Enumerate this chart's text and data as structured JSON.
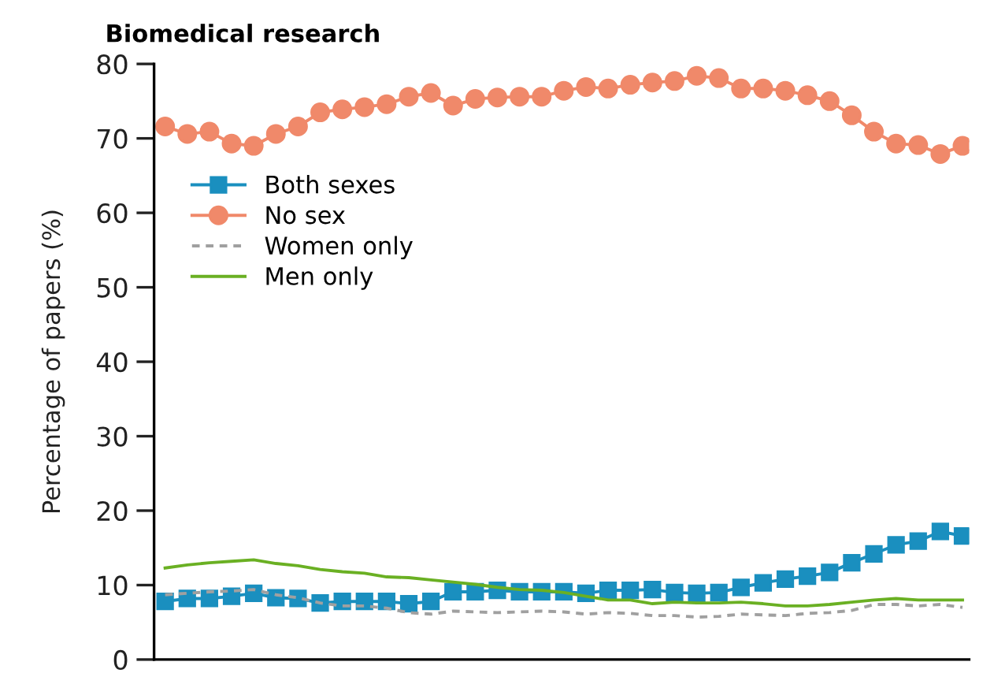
{
  "chart_data": {
    "type": "line",
    "title": "Biomedical research",
    "ylabel": "Percentage of papers (%)",
    "categories": [
      null,
      null,
      null,
      null,
      null,
      null,
      null,
      null,
      null,
      null,
      null,
      null,
      null,
      null,
      null,
      null,
      null,
      null,
      null,
      null,
      null,
      null,
      null,
      null,
      null,
      null,
      null,
      null,
      null,
      null,
      null,
      null,
      null,
      null,
      null,
      null,
      null
    ],
    "ylim": [
      0,
      80
    ],
    "yticks": [
      0,
      10,
      20,
      30,
      40,
      50,
      60,
      70,
      80
    ],
    "grid": false,
    "legend": "top left",
    "series": [
      {
        "name": "Both sexes",
        "color": "#1a8fbf",
        "marker": "square",
        "line_style": "solid",
        "values": [
          7.8,
          8.2,
          8.2,
          8.5,
          8.9,
          8.3,
          8.2,
          7.6,
          7.8,
          7.8,
          7.8,
          7.5,
          7.8,
          9.1,
          9.1,
          9.3,
          9.1,
          9.1,
          9.1,
          8.9,
          9.3,
          9.3,
          9.4,
          9.0,
          8.9,
          9.0,
          9.7,
          10.3,
          10.8,
          11.2,
          11.7,
          13.0,
          14.2,
          15.4,
          15.9,
          17.2,
          16.6
        ]
      },
      {
        "name": "No sex",
        "color": "#f0896a",
        "marker": "circle",
        "line_style": "solid",
        "values": [
          71.6,
          70.6,
          70.9,
          69.3,
          69.0,
          70.6,
          71.6,
          73.5,
          73.9,
          74.2,
          74.6,
          75.6,
          76.1,
          74.4,
          75.3,
          75.5,
          75.6,
          75.6,
          76.4,
          76.9,
          76.7,
          77.2,
          77.5,
          77.7,
          78.4,
          78.1,
          76.7,
          76.7,
          76.4,
          75.8,
          75.0,
          73.1,
          70.9,
          69.3,
          69.1,
          67.9,
          69.0
        ]
      },
      {
        "name": "Women only",
        "color": "#a0a0a0",
        "marker": "none",
        "line_style": "dashed",
        "values": [
          8.7,
          8.9,
          9.1,
          9.2,
          9.4,
          8.7,
          8.3,
          7.6,
          7.2,
          7.2,
          6.9,
          6.3,
          6.1,
          6.5,
          6.4,
          6.3,
          6.4,
          6.5,
          6.4,
          6.1,
          6.3,
          6.2,
          5.9,
          5.9,
          5.7,
          5.8,
          6.1,
          6.0,
          5.9,
          6.2,
          6.3,
          6.6,
          7.4,
          7.4,
          7.2,
          7.4,
          7.0
        ]
      },
      {
        "name": "Men only",
        "color": "#6ab023",
        "marker": "none",
        "line_style": "solid",
        "values": [
          12.3,
          12.7,
          13.0,
          13.2,
          13.4,
          12.9,
          12.6,
          12.1,
          11.8,
          11.6,
          11.1,
          11.0,
          10.7,
          10.4,
          10.1,
          9.7,
          9.4,
          9.3,
          9.0,
          8.5,
          8.0,
          8.0,
          7.5,
          7.7,
          7.6,
          7.6,
          7.7,
          7.5,
          7.2,
          7.2,
          7.4,
          7.7,
          8.0,
          8.2,
          8.0,
          8.0,
          8.0
        ]
      }
    ]
  }
}
